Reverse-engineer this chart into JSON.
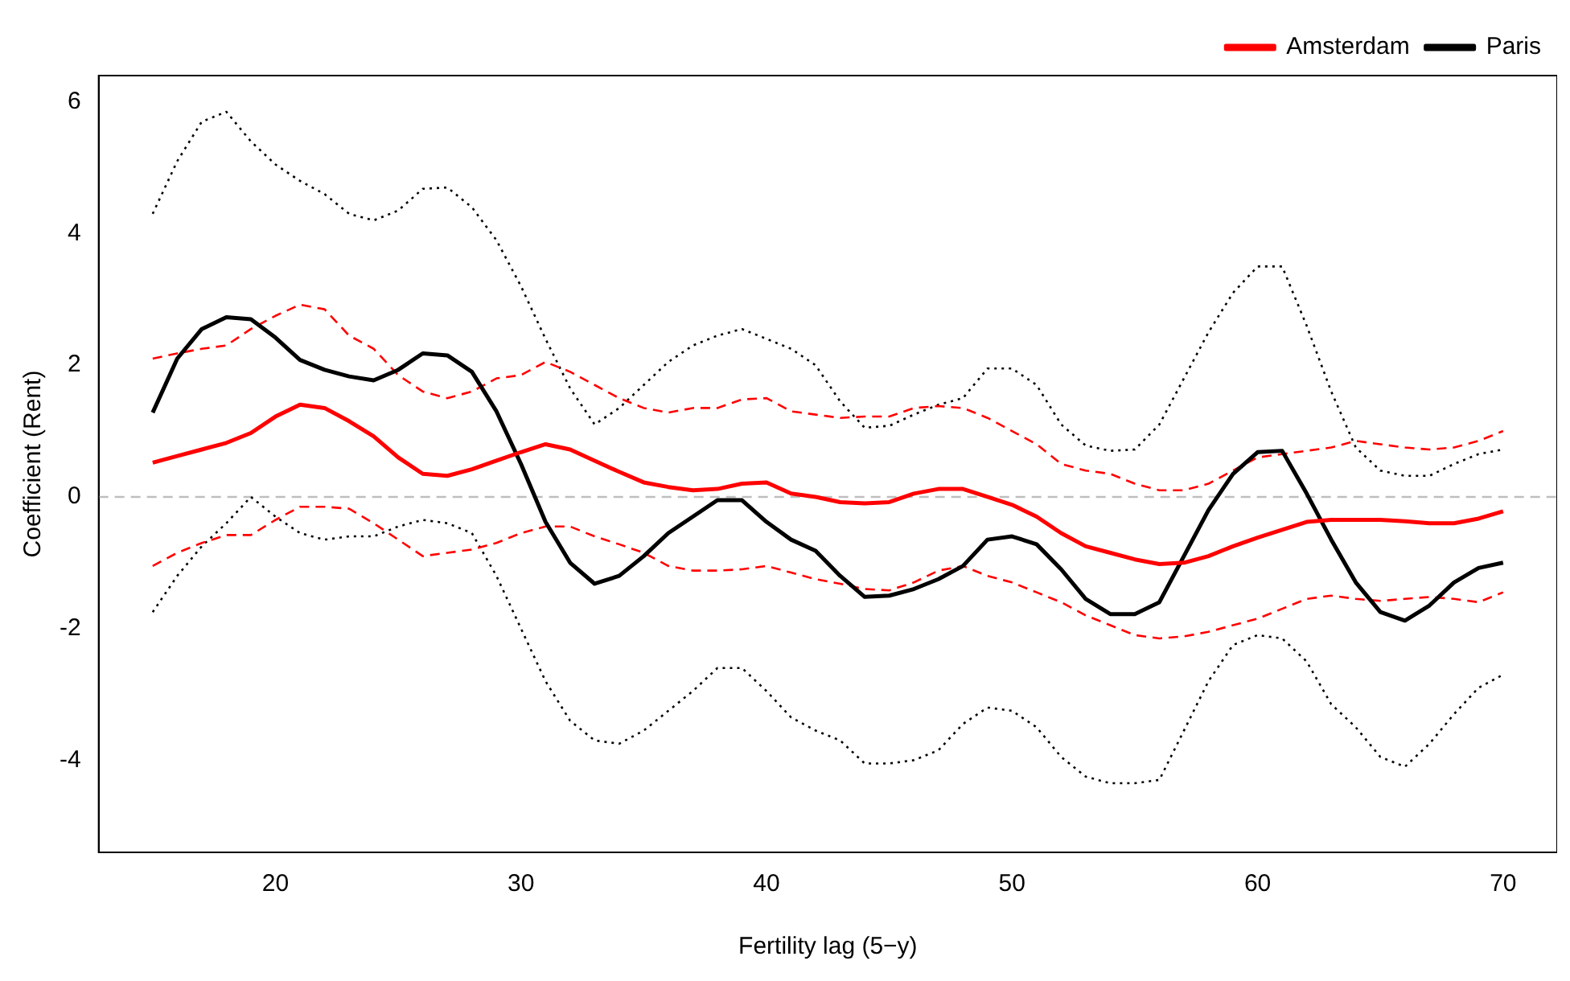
{
  "chart_data": {
    "type": "line",
    "xlabel": "Fertility lag (5−y)",
    "ylabel": "Coefficient (Rent)",
    "x": [
      15,
      16,
      17,
      18,
      19,
      20,
      21,
      22,
      23,
      24,
      25,
      26,
      27,
      28,
      29,
      30,
      31,
      32,
      33,
      34,
      35,
      36,
      37,
      38,
      39,
      40,
      41,
      42,
      43,
      44,
      45,
      46,
      47,
      48,
      49,
      50,
      51,
      52,
      53,
      54,
      55,
      56,
      57,
      58,
      59,
      60,
      61,
      62,
      63,
      64,
      65,
      66,
      67,
      68,
      69,
      70
    ],
    "xlim": [
      12.8,
      72.2
    ],
    "xticks": [
      20,
      30,
      40,
      50,
      60,
      70
    ],
    "ylim": [
      -5.4,
      6.4
    ],
    "yticks": [
      -4,
      -2,
      0,
      2,
      4,
      6
    ],
    "grid": false,
    "legend": "top right",
    "marker": "none",
    "line_style": "solid",
    "ref_lines": [
      {
        "axis": "y",
        "value": 0,
        "color": "#bebebe",
        "line_style": "dashed"
      }
    ],
    "series": [
      {
        "name": "Amsterdam",
        "color": "#ff0000",
        "values": [
          0.52,
          0.62,
          0.72,
          0.82,
          0.97,
          1.22,
          1.4,
          1.35,
          1.15,
          0.92,
          0.6,
          0.35,
          0.32,
          0.42,
          0.55,
          0.68,
          0.8,
          0.72,
          0.55,
          0.38,
          0.22,
          0.15,
          0.1,
          0.12,
          0.2,
          0.22,
          0.05,
          0,
          -0.08,
          -0.1,
          -0.08,
          0.05,
          0.12,
          0.12,
          0,
          -0.12,
          -0.3,
          -0.55,
          -0.75,
          -0.85,
          -0.95,
          -1.02,
          -1,
          -0.9,
          -0.75,
          -0.62,
          -0.5,
          -0.38,
          -0.35,
          -0.35,
          -0.35,
          -0.37,
          -0.4,
          -0.4,
          -0.33,
          -0.22
        ]
      },
      {
        "name": "Paris",
        "color": "#000000",
        "values": [
          1.28,
          2.1,
          2.55,
          2.73,
          2.7,
          2.42,
          2.08,
          1.93,
          1.83,
          1.77,
          1.93,
          2.18,
          2.15,
          1.9,
          1.3,
          0.5,
          -0.38,
          -1,
          -1.32,
          -1.2,
          -0.9,
          -0.55,
          -0.3,
          -0.05,
          -0.05,
          -0.38,
          -0.65,
          -0.82,
          -1.2,
          -1.52,
          -1.5,
          -1.4,
          -1.25,
          -1.05,
          -0.65,
          -0.6,
          -0.72,
          -1.1,
          -1.55,
          -1.78,
          -1.78,
          -1.6,
          -0.9,
          -0.2,
          0.35,
          0.68,
          0.7,
          0.05,
          -0.65,
          -1.3,
          -1.75,
          -1.88,
          -1.65,
          -1.3,
          -1.08,
          -1
        ]
      },
      {
        "color": "#ff0000",
        "line_style": "dashed",
        "values": [
          2.1,
          2.18,
          2.25,
          2.3,
          2.55,
          2.75,
          2.92,
          2.85,
          2.45,
          2.25,
          1.85,
          1.6,
          1.5,
          1.6,
          1.8,
          1.85,
          2.05,
          1.9,
          1.7,
          1.5,
          1.35,
          1.28,
          1.35,
          1.35,
          1.48,
          1.5,
          1.3,
          1.25,
          1.2,
          1.22,
          1.22,
          1.35,
          1.38,
          1.35,
          1.2,
          1,
          0.8,
          0.5,
          0.4,
          0.35,
          0.2,
          0.1,
          0.1,
          0.2,
          0.4,
          0.6,
          0.65,
          0.7,
          0.75,
          0.85,
          0.8,
          0.75,
          0.72,
          0.75,
          0.85,
          1
        ]
      },
      {
        "color": "#ff0000",
        "line_style": "dashed",
        "values": [
          -1.05,
          -0.85,
          -0.7,
          -0.58,
          -0.58,
          -0.35,
          -0.15,
          -0.15,
          -0.18,
          -0.4,
          -0.65,
          -0.9,
          -0.85,
          -0.8,
          -0.7,
          -0.55,
          -0.45,
          -0.45,
          -0.6,
          -0.72,
          -0.85,
          -1.05,
          -1.12,
          -1.12,
          -1.1,
          -1.05,
          -1.15,
          -1.25,
          -1.32,
          -1.4,
          -1.42,
          -1.3,
          -1.12,
          -1.05,
          -1.2,
          -1.3,
          -1.45,
          -1.6,
          -1.8,
          -1.95,
          -2.1,
          -2.15,
          -2.12,
          -2.05,
          -1.95,
          -1.85,
          -1.7,
          -1.55,
          -1.5,
          -1.55,
          -1.58,
          -1.55,
          -1.52,
          -1.55,
          -1.6,
          -1.45
        ]
      },
      {
        "color": "#000000",
        "line_style": "dotted",
        "values": [
          4.3,
          5.1,
          5.7,
          5.85,
          5.4,
          5.05,
          4.8,
          4.6,
          4.3,
          4.2,
          4.35,
          4.68,
          4.7,
          4.4,
          3.9,
          3.2,
          2.4,
          1.65,
          1.1,
          1.35,
          1.7,
          2.05,
          2.3,
          2.45,
          2.55,
          2.4,
          2.25,
          2,
          1.45,
          1.05,
          1.08,
          1.25,
          1.4,
          1.5,
          1.95,
          1.95,
          1.7,
          1.1,
          0.78,
          0.7,
          0.72,
          1.1,
          1.8,
          2.5,
          3.1,
          3.5,
          3.5,
          2.6,
          1.6,
          0.75,
          0.4,
          0.32,
          0.32,
          0.5,
          0.65,
          0.72
        ]
      },
      {
        "color": "#000000",
        "line_style": "dotted",
        "values": [
          -1.75,
          -1.2,
          -0.75,
          -0.4,
          0,
          -0.3,
          -0.55,
          -0.65,
          -0.6,
          -0.6,
          -0.45,
          -0.35,
          -0.4,
          -0.55,
          -1.2,
          -2,
          -2.8,
          -3.4,
          -3.7,
          -3.75,
          -3.55,
          -3.25,
          -2.95,
          -2.6,
          -2.6,
          -2.95,
          -3.35,
          -3.55,
          -3.7,
          -4.05,
          -4.05,
          -4,
          -3.85,
          -3.45,
          -3.2,
          -3.25,
          -3.5,
          -3.95,
          -4.25,
          -4.35,
          -4.35,
          -4.3,
          -3.55,
          -2.8,
          -2.25,
          -2.1,
          -2.15,
          -2.5,
          -3.15,
          -3.5,
          -3.95,
          -4.1,
          -3.75,
          -3.3,
          -2.9,
          -2.7
        ]
      }
    ]
  }
}
